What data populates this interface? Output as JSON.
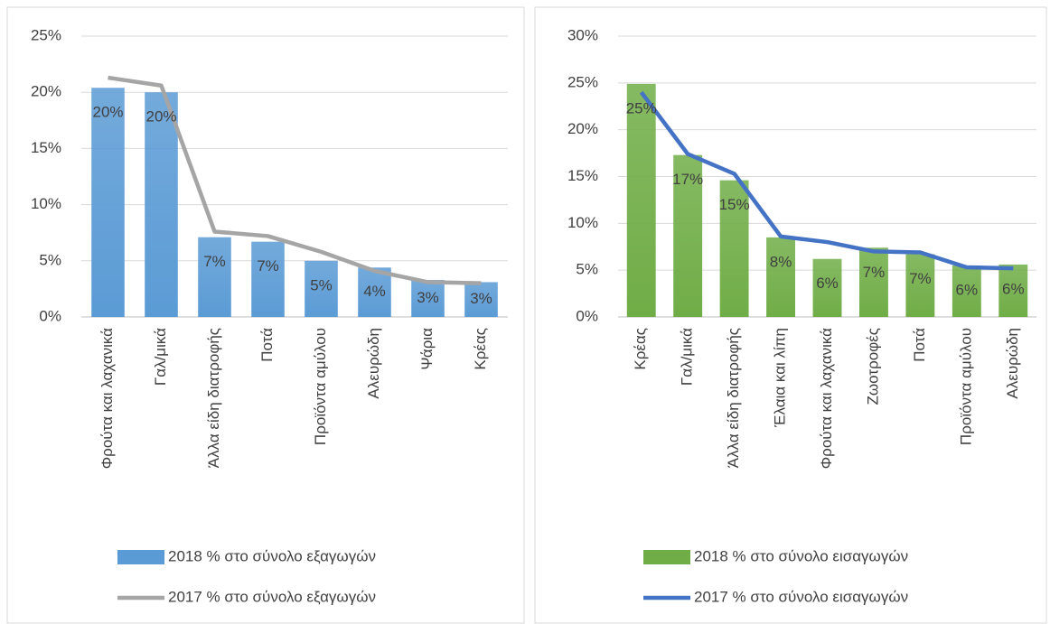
{
  "chart_data": [
    {
      "type": "bar",
      "categories": [
        "Φρούτα και λαχανικά",
        "Γαλ/μικά",
        "Άλλα είδη διατροφής",
        "Ποτά",
        "Προϊόντα αμύλου",
        "Αλευρώδη",
        "Ψάρια",
        "Κρέας"
      ],
      "series": [
        {
          "name": "2018 % στο σύνολο εξαγωγών",
          "type": "bar",
          "color": "#5b9bd5",
          "values": [
            20.4,
            20.0,
            7.1,
            6.7,
            5.0,
            4.4,
            3.3,
            3.1
          ],
          "value_labels": [
            "20%",
            "20%",
            "7%",
            "7%",
            "5%",
            "4%",
            "3%",
            "3%"
          ]
        },
        {
          "name": "2017 % στο σύνολο εξαγωγών",
          "type": "line",
          "color": "#a5a5a5",
          "values": [
            21.3,
            20.6,
            7.6,
            7.2,
            5.8,
            4.1,
            3.1,
            3.0
          ]
        }
      ],
      "ylim": [
        0,
        25
      ],
      "yticks": [
        {
          "value": 0,
          "label": "0%"
        },
        {
          "value": 5,
          "label": "5%"
        },
        {
          "value": 10,
          "label": "10%"
        },
        {
          "value": 15,
          "label": "15%"
        },
        {
          "value": 20,
          "label": "20%"
        },
        {
          "value": 25,
          "label": "25%"
        }
      ],
      "grid": true
    },
    {
      "type": "bar",
      "categories": [
        "Κρέας",
        "Γαλ/μικά",
        "Άλλα είδη διατροφής",
        "Έλαια και λίπη",
        "Φρούτα και λαχανικά",
        "Ζωοτροφές",
        "Ποτά",
        "Προϊόντα αμύλου",
        "Αλευρώδη"
      ],
      "series": [
        {
          "name": "2018 % στο σύνολο εισαγωγών",
          "type": "bar",
          "color": "#70ad47",
          "values": [
            24.9,
            17.3,
            14.6,
            8.5,
            6.2,
            7.4,
            6.7,
            5.5,
            5.6
          ],
          "value_labels": [
            "25%",
            "17%",
            "15%",
            "8%",
            "6%",
            "7%",
            "7%",
            "6%",
            "6%"
          ]
        },
        {
          "name": "2017 % στο σύνολο εισαγωγών",
          "type": "line",
          "color": "#4472c4",
          "values": [
            24.0,
            17.4,
            15.3,
            8.6,
            8.0,
            7.0,
            6.9,
            5.3,
            5.2
          ]
        }
      ],
      "ylim": [
        0,
        30
      ],
      "yticks": [
        {
          "value": 0,
          "label": "0%"
        },
        {
          "value": 5,
          "label": "5%"
        },
        {
          "value": 10,
          "label": "10%"
        },
        {
          "value": 15,
          "label": "15%"
        },
        {
          "value": 20,
          "label": "20%"
        },
        {
          "value": 25,
          "label": "25%"
        },
        {
          "value": 30,
          "label": "30%"
        }
      ],
      "grid": true
    }
  ]
}
